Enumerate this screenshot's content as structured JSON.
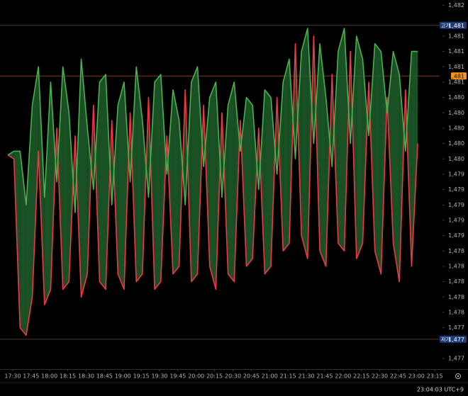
{
  "chart_data": {
    "type": "line",
    "xlim": [
      1039.6,
      1414
    ],
    "ylim": [
      1476.87,
      1481.67
    ],
    "x": [
      1046,
      1051,
      1056,
      1061,
      1066,
      1071,
      1076,
      1081,
      1086,
      1091,
      1096,
      1101,
      1106,
      1111,
      1116,
      1121,
      1126,
      1131,
      1136,
      1141,
      1146,
      1151,
      1156,
      1161,
      1166,
      1171,
      1176,
      1181,
      1186,
      1191,
      1196,
      1201,
      1206,
      1211,
      1216,
      1221,
      1226,
      1231,
      1236,
      1241,
      1246,
      1251,
      1256,
      1261,
      1266,
      1271,
      1276,
      1281,
      1286,
      1291,
      1296,
      1301,
      1306,
      1311,
      1316,
      1321,
      1326,
      1331,
      1336,
      1341,
      1346,
      1351,
      1356,
      1361,
      1366,
      1371,
      1376,
      1381
    ],
    "series": [
      {
        "color": "#4caf50",
        "fill": "#1f5f2a",
        "values": [
          1479.65,
          1479.7,
          1479.7,
          1479.0,
          1480.3,
          1480.8,
          1479.1,
          1480.6,
          1479.3,
          1480.8,
          1480.2,
          1478.9,
          1480.9,
          1480.0,
          1479.2,
          1480.6,
          1480.7,
          1479.0,
          1480.3,
          1480.6,
          1479.3,
          1480.8,
          1480.1,
          1479.1,
          1480.6,
          1480.7,
          1479.4,
          1480.5,
          1480.1,
          1479.0,
          1480.6,
          1480.8,
          1479.5,
          1480.4,
          1480.6,
          1479.1,
          1480.3,
          1480.6,
          1479.7,
          1480.4,
          1480.3,
          1479.2,
          1480.5,
          1480.4,
          1479.4,
          1480.6,
          1480.9,
          1479.6,
          1481.0,
          1481.3,
          1479.8,
          1481.1,
          1480.4,
          1479.5,
          1481.0,
          1481.3,
          1479.8,
          1481.2,
          1480.9,
          1479.9,
          1481.1,
          1481.0,
          1480.2,
          1481.0,
          1480.7,
          1479.7,
          1481.0,
          1481.0
        ]
      },
      {
        "color": "#f23645",
        "fill": "#8c1c24",
        "values": [
          1479.65,
          1479.6,
          1477.4,
          1477.3,
          1477.8,
          1479.7,
          1477.7,
          1477.9,
          1480.0,
          1477.9,
          1478.0,
          1479.9,
          1477.8,
          1478.1,
          1480.3,
          1478.0,
          1477.9,
          1480.1,
          1478.1,
          1477.9,
          1480.2,
          1478.0,
          1478.1,
          1480.4,
          1477.9,
          1478.0,
          1479.9,
          1478.1,
          1478.2,
          1480.5,
          1478.0,
          1478.1,
          1480.3,
          1478.2,
          1477.9,
          1480.2,
          1478.1,
          1478.0,
          1480.1,
          1478.2,
          1478.3,
          1480.0,
          1478.1,
          1478.2,
          1480.4,
          1478.4,
          1478.5,
          1481.1,
          1478.6,
          1478.3,
          1481.2,
          1478.4,
          1478.2,
          1480.7,
          1478.5,
          1478.4,
          1481.0,
          1478.3,
          1478.5,
          1480.6,
          1478.4,
          1478.1,
          1480.4,
          1478.5,
          1478.0,
          1480.5,
          1478.2,
          1479.8
        ]
      }
    ],
    "yticks": [
      {
        "value": 1481.6,
        "label": "1,482"
      },
      {
        "value": 1481.2,
        "label": "1,481"
      },
      {
        "value": 1481.0,
        "label": "1,481"
      },
      {
        "value": 1480.8,
        "label": "1,481"
      },
      {
        "value": 1480.6,
        "label": "1,481"
      },
      {
        "value": 1480.4,
        "label": "1,480"
      },
      {
        "value": 1480.2,
        "label": "1,480"
      },
      {
        "value": 1480.0,
        "label": "1,480"
      },
      {
        "value": 1479.8,
        "label": "1,480"
      },
      {
        "value": 1479.6,
        "label": "1,480"
      },
      {
        "value": 1479.4,
        "label": "1,479"
      },
      {
        "value": 1479.2,
        "label": "1,479"
      },
      {
        "value": 1479.0,
        "label": "1,479"
      },
      {
        "value": 1478.8,
        "label": "1,479"
      },
      {
        "value": 1478.6,
        "label": "1,479"
      },
      {
        "value": 1478.4,
        "label": "1,478"
      },
      {
        "value": 1478.2,
        "label": "1,478"
      },
      {
        "value": 1478.0,
        "label": "1,478"
      },
      {
        "value": 1477.8,
        "label": "1,478"
      },
      {
        "value": 1477.6,
        "label": "1,478"
      },
      {
        "value": 1477.4,
        "label": "1,477"
      },
      {
        "value": 1477.0,
        "label": "1,477"
      }
    ],
    "xticks": [
      {
        "value": 1050,
        "label": "17:30"
      },
      {
        "value": 1065,
        "label": "17:45"
      },
      {
        "value": 1080,
        "label": "18:00"
      },
      {
        "value": 1095,
        "label": "18:15"
      },
      {
        "value": 1110,
        "label": "18:30"
      },
      {
        "value": 1125,
        "label": "18:45"
      },
      {
        "value": 1140,
        "label": "19:00"
      },
      {
        "value": 1155,
        "label": "19:15"
      },
      {
        "value": 1170,
        "label": "19:30"
      },
      {
        "value": 1185,
        "label": "19:45"
      },
      {
        "value": 1200,
        "label": "20:00"
      },
      {
        "value": 1215,
        "label": "20:15"
      },
      {
        "value": 1230,
        "label": "20:30"
      },
      {
        "value": 1245,
        "label": "20:45"
      },
      {
        "value": 1260,
        "label": "21:00"
      },
      {
        "value": 1275,
        "label": "21:15"
      },
      {
        "value": 1290,
        "label": "21:30"
      },
      {
        "value": 1305,
        "label": "21:45"
      },
      {
        "value": 1320,
        "label": "22:00"
      },
      {
        "value": 1335,
        "label": "22:15"
      },
      {
        "value": 1350,
        "label": "22:30"
      },
      {
        "value": 1365,
        "label": "22:45"
      },
      {
        "value": 1380,
        "label": "23:00"
      },
      {
        "value": 1395,
        "label": "23:15"
      }
    ],
    "price_lines": [
      {
        "label": "고가",
        "value": 1481.34,
        "value_label": "1,481",
        "color": "#1e3a78",
        "line_color": "#4a3a2a"
      },
      {
        "value": 1480.68,
        "value_label": "1,481",
        "color": "#f7931a",
        "line_color": "#7a3d12"
      },
      {
        "label": "저가",
        "value": 1477.25,
        "value_label": "1,477",
        "color": "#1e3a78",
        "line_color": "#4a3a2a"
      }
    ],
    "time_label": "23:04:03 UTC+9"
  }
}
